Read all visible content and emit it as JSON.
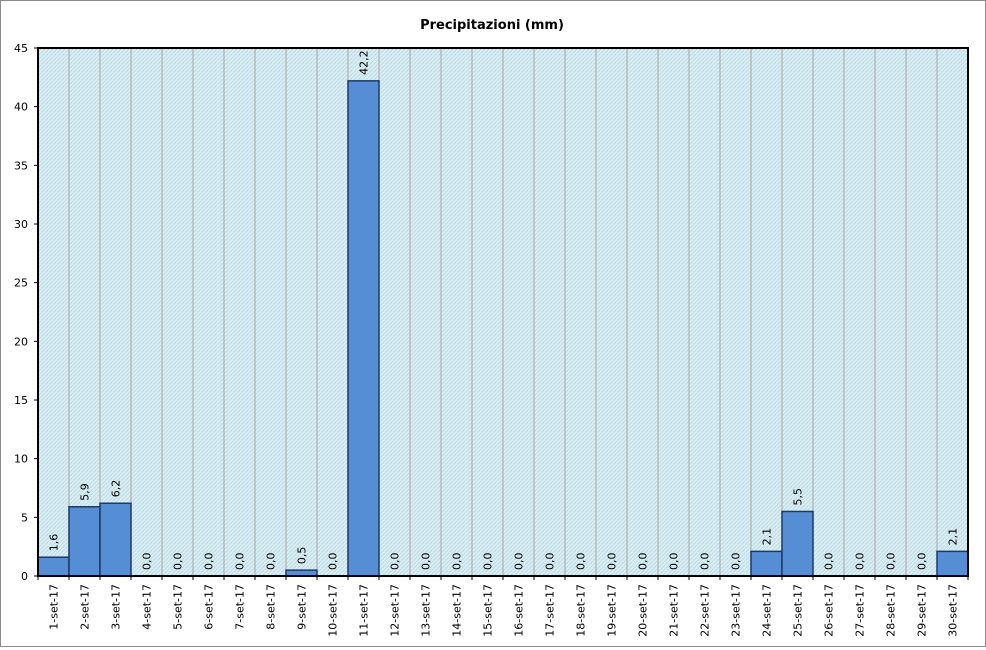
{
  "chart_data": {
    "type": "bar",
    "title": "Precipitazioni (mm)",
    "xlabel": "",
    "ylabel": "",
    "ylim": [
      0,
      45
    ],
    "yticks": [
      0,
      5,
      10,
      15,
      20,
      25,
      30,
      35,
      40,
      45
    ],
    "grid": "vertical",
    "legend": "none",
    "categories": [
      "1-set-17",
      "2-set-17",
      "3-set-17",
      "4-set-17",
      "5-set-17",
      "6-set-17",
      "7-set-17",
      "8-set-17",
      "9-set-17",
      "10-set-17",
      "11-set-17",
      "12-set-17",
      "13-set-17",
      "14-set-17",
      "15-set-17",
      "16-set-17",
      "17-set-17",
      "18-set-17",
      "19-set-17",
      "20-set-17",
      "21-set-17",
      "22-set-17",
      "23-set-17",
      "24-set-17",
      "25-set-17",
      "26-set-17",
      "27-set-17",
      "28-set-17",
      "29-set-17",
      "30-set-17"
    ],
    "values": [
      1.6,
      5.9,
      6.2,
      0.0,
      0.0,
      0.0,
      0.0,
      0.0,
      0.5,
      0.0,
      42.2,
      0.0,
      0.0,
      0.0,
      0.0,
      0.0,
      0.0,
      0.0,
      0.0,
      0.0,
      0.0,
      0.0,
      0.0,
      2.1,
      5.5,
      0.0,
      0.0,
      0.0,
      0.0,
      2.1
    ],
    "data_labels": [
      "1,6",
      "5,9",
      "6,2",
      "0,0",
      "0,0",
      "0,0",
      "0,0",
      "0,0",
      "0,5",
      "0,0",
      "42,2",
      "0,0",
      "0,0",
      "0,0",
      "0,0",
      "0,0",
      "0,0",
      "0,0",
      "0,0",
      "0,0",
      "0,0",
      "0,0",
      "0,0",
      "2,1",
      "5,5",
      "0,0",
      "0,0",
      "0,0",
      "0,0",
      "2,1"
    ],
    "colors": {
      "bar_fill": "#558ed5",
      "bar_stroke": "#1f3864",
      "plot_bg": "#daeef3",
      "plot_hatch": "#b7dde8",
      "gridline": "#a6a6a6",
      "plot_border": "#000000"
    }
  }
}
